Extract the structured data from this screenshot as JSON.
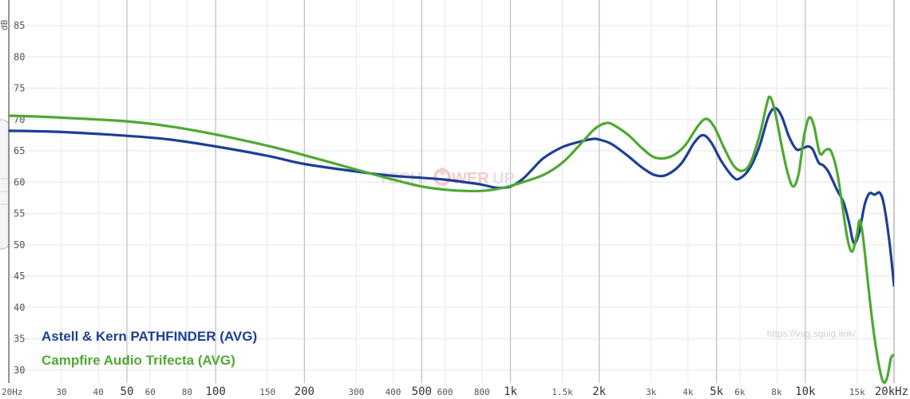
{
  "chart_data": {
    "type": "line",
    "title": "",
    "xlabel": "",
    "ylabel": "dB",
    "x_scale": "log",
    "xlim": [
      20,
      20000
    ],
    "ylim": [
      28,
      87
    ],
    "y_ticks": [
      30,
      35,
      40,
      45,
      50,
      55,
      60,
      65,
      70,
      75,
      80,
      85
    ],
    "x_ticks": [
      {
        "v": 20,
        "label": "20Hz",
        "major": false
      },
      {
        "v": 30,
        "label": "30",
        "major": false
      },
      {
        "v": 40,
        "label": "40",
        "major": false
      },
      {
        "v": 50,
        "label": "50",
        "major": true
      },
      {
        "v": 60,
        "label": "60",
        "major": false
      },
      {
        "v": 80,
        "label": "80",
        "major": false
      },
      {
        "v": 100,
        "label": "100",
        "major": true
      },
      {
        "v": 150,
        "label": "150",
        "major": false
      },
      {
        "v": 200,
        "label": "200",
        "major": true
      },
      {
        "v": 300,
        "label": "300",
        "major": false
      },
      {
        "v": 400,
        "label": "400",
        "major": false
      },
      {
        "v": 500,
        "label": "500",
        "major": true
      },
      {
        "v": 600,
        "label": "600",
        "major": false
      },
      {
        "v": 800,
        "label": "800",
        "major": false
      },
      {
        "v": 1000,
        "label": "1k",
        "major": true
      },
      {
        "v": 1500,
        "label": "1.5k",
        "major": false
      },
      {
        "v": 2000,
        "label": "2k",
        "major": true
      },
      {
        "v": 3000,
        "label": "3k",
        "major": false
      },
      {
        "v": 4000,
        "label": "4k",
        "major": false
      },
      {
        "v": 5000,
        "label": "5k",
        "major": true
      },
      {
        "v": 6000,
        "label": "6k",
        "major": false
      },
      {
        "v": 8000,
        "label": "8k",
        "major": false
      },
      {
        "v": 10000,
        "label": "10k",
        "major": true
      },
      {
        "v": 15000,
        "label": "15k",
        "major": false
      },
      {
        "v": 20000,
        "label": "20kHz",
        "major": true
      }
    ],
    "grid": true,
    "legend_position": "bottom-left",
    "series": [
      {
        "name": "Astell & Kern PATHFINDER (AVG)",
        "color": "#1e3f94",
        "points": [
          [
            20,
            68.2
          ],
          [
            30,
            68.0
          ],
          [
            50,
            67.4
          ],
          [
            70,
            66.8
          ],
          [
            100,
            65.7
          ],
          [
            150,
            64.2
          ],
          [
            200,
            62.9
          ],
          [
            300,
            61.7
          ],
          [
            400,
            61.0
          ],
          [
            500,
            60.7
          ],
          [
            600,
            60.4
          ],
          [
            700,
            60.0
          ],
          [
            800,
            59.6
          ],
          [
            900,
            59.1
          ],
          [
            1000,
            59.3
          ],
          [
            1100,
            60.5
          ],
          [
            1200,
            62.3
          ],
          [
            1300,
            63.9
          ],
          [
            1500,
            65.6
          ],
          [
            1700,
            66.4
          ],
          [
            1900,
            66.9
          ],
          [
            2000,
            66.8
          ],
          [
            2200,
            66.1
          ],
          [
            2500,
            64.2
          ],
          [
            2800,
            62.3
          ],
          [
            3100,
            61.1
          ],
          [
            3400,
            61.2
          ],
          [
            3800,
            63.0
          ],
          [
            4200,
            66.3
          ],
          [
            4500,
            67.5
          ],
          [
            4800,
            66.3
          ],
          [
            5200,
            63.3
          ],
          [
            5700,
            60.8
          ],
          [
            6000,
            60.6
          ],
          [
            6500,
            62.3
          ],
          [
            7000,
            65.8
          ],
          [
            7500,
            70.5
          ],
          [
            7900,
            71.8
          ],
          [
            8300,
            70.6
          ],
          [
            8800,
            67.3
          ],
          [
            9300,
            65.3
          ],
          [
            9700,
            65.3
          ],
          [
            10200,
            65.7
          ],
          [
            10600,
            65.2
          ],
          [
            11100,
            63.1
          ],
          [
            11500,
            62.7
          ],
          [
            12000,
            61.6
          ],
          [
            12800,
            58.8
          ],
          [
            13500,
            56.7
          ],
          [
            14100,
            53.4
          ],
          [
            14600,
            50.3
          ],
          [
            15200,
            51.8
          ],
          [
            15900,
            56.4
          ],
          [
            16500,
            58.2
          ],
          [
            17200,
            58.0
          ],
          [
            17900,
            58.3
          ],
          [
            18500,
            56.3
          ],
          [
            19300,
            50.4
          ],
          [
            20000,
            43.5
          ]
        ]
      },
      {
        "name": "Campfire Audio Trifecta (AVG)",
        "color": "#4fa832",
        "points": [
          [
            20,
            70.6
          ],
          [
            30,
            70.3
          ],
          [
            50,
            69.7
          ],
          [
            70,
            68.9
          ],
          [
            100,
            67.6
          ],
          [
            150,
            65.8
          ],
          [
            200,
            64.3
          ],
          [
            300,
            62.0
          ],
          [
            400,
            60.4
          ],
          [
            500,
            59.3
          ],
          [
            600,
            58.8
          ],
          [
            700,
            58.6
          ],
          [
            800,
            58.6
          ],
          [
            900,
            58.9
          ],
          [
            1000,
            59.4
          ],
          [
            1100,
            60.0
          ],
          [
            1300,
            61.2
          ],
          [
            1500,
            63.1
          ],
          [
            1700,
            65.7
          ],
          [
            1900,
            68.2
          ],
          [
            2000,
            69.0
          ],
          [
            2100,
            69.4
          ],
          [
            2200,
            69.3
          ],
          [
            2500,
            67.6
          ],
          [
            2800,
            65.4
          ],
          [
            3100,
            63.9
          ],
          [
            3500,
            64.1
          ],
          [
            3900,
            65.8
          ],
          [
            4300,
            68.8
          ],
          [
            4600,
            70.1
          ],
          [
            4900,
            68.9
          ],
          [
            5300,
            65.5
          ],
          [
            5700,
            62.7
          ],
          [
            6100,
            61.8
          ],
          [
            6500,
            63.0
          ],
          [
            7000,
            67.5
          ],
          [
            7400,
            72.4
          ],
          [
            7600,
            73.6
          ],
          [
            7900,
            71.2
          ],
          [
            8300,
            66.0
          ],
          [
            8700,
            61.6
          ],
          [
            9100,
            59.3
          ],
          [
            9500,
            61.4
          ],
          [
            9900,
            67.3
          ],
          [
            10300,
            70.3
          ],
          [
            10700,
            69.0
          ],
          [
            11200,
            64.6
          ],
          [
            11700,
            65.1
          ],
          [
            12200,
            65.0
          ],
          [
            12800,
            61.8
          ],
          [
            13300,
            56.8
          ],
          [
            13900,
            51.0
          ],
          [
            14400,
            48.9
          ],
          [
            14900,
            51.2
          ],
          [
            15300,
            53.9
          ],
          [
            15700,
            51.2
          ],
          [
            16200,
            45.3
          ],
          [
            16800,
            38.6
          ],
          [
            17400,
            33.3
          ],
          [
            18000,
            29.5
          ],
          [
            18500,
            28.0
          ],
          [
            19000,
            29.0
          ],
          [
            19500,
            31.8
          ],
          [
            19900,
            32.4
          ]
        ]
      }
    ]
  },
  "watermark": {
    "site": "https://vsg.squig.link/",
    "logo": "TECHPOWERUP"
  }
}
